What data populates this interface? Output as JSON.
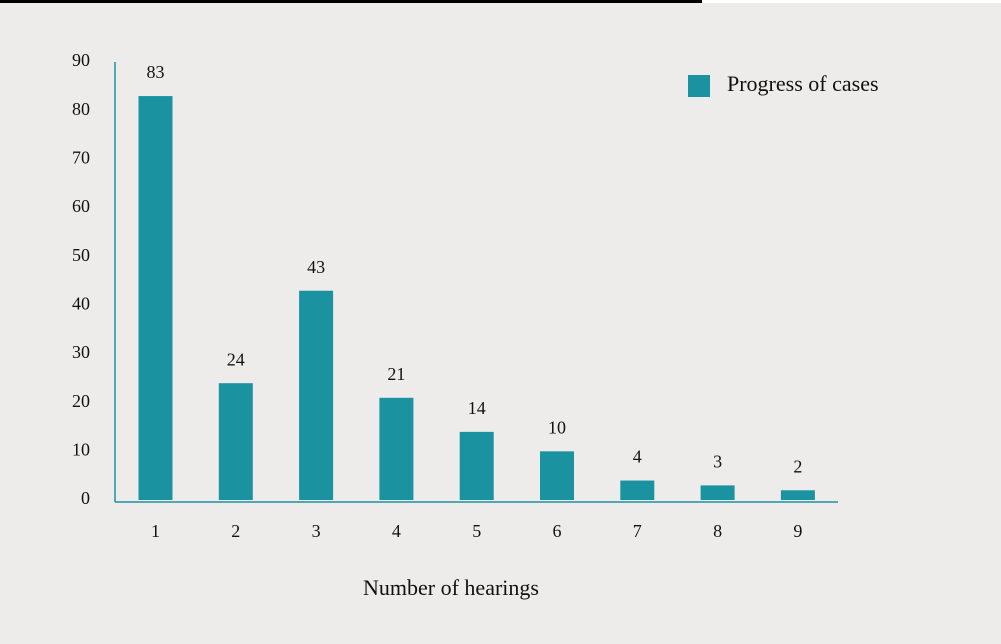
{
  "chart_data": {
    "type": "bar",
    "categories": [
      "1",
      "2",
      "3",
      "4",
      "5",
      "6",
      "7",
      "8",
      "9"
    ],
    "series": [
      {
        "name": "Progress of cases",
        "color": "#1a929f",
        "values": [
          83,
          24,
          43,
          21,
          14,
          10,
          4,
          3,
          2
        ]
      }
    ],
    "xlabel": "Number of hearings",
    "ylim": [
      0,
      90
    ],
    "yticks": [
      0,
      10,
      20,
      30,
      40,
      50,
      60,
      70,
      80,
      90
    ],
    "grid": false,
    "legend": "top-right"
  }
}
